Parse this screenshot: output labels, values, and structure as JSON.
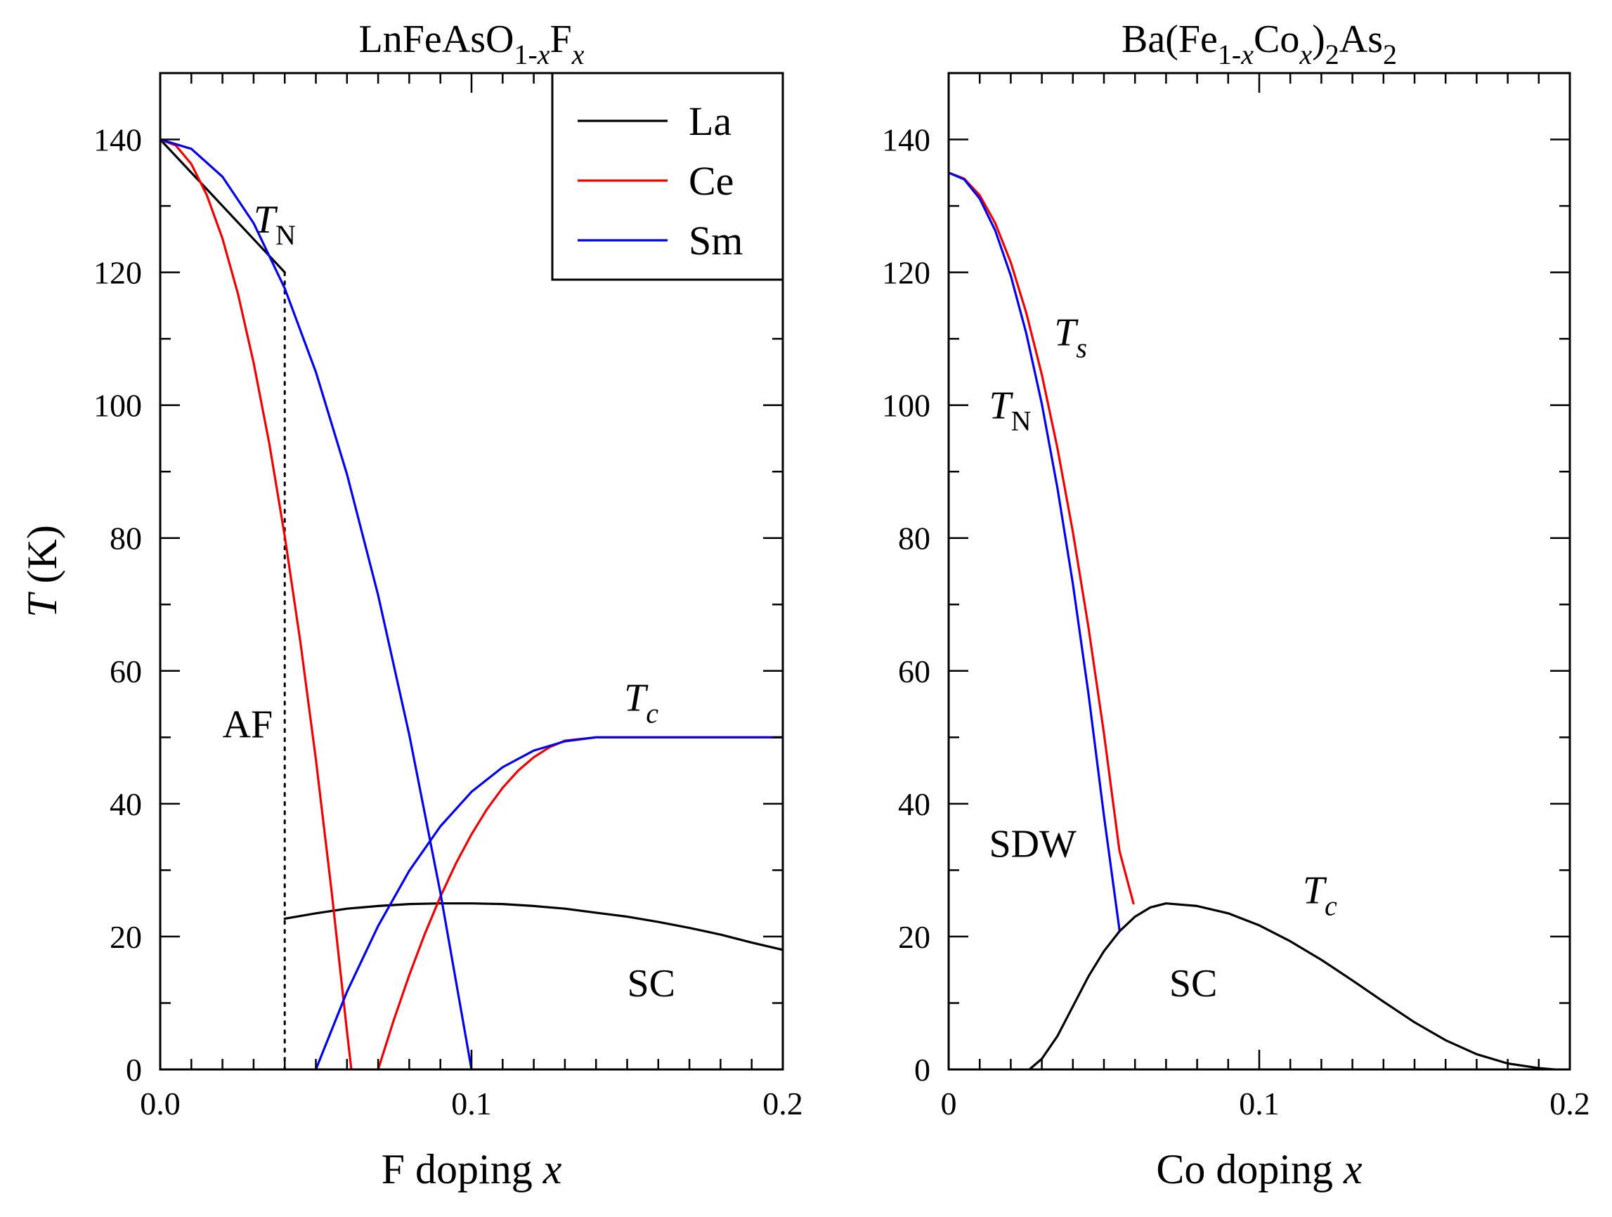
{
  "chart_data": [
    {
      "type": "line",
      "panel": "left",
      "title": "LnFeAsO1-xFx",
      "title_parts": [
        {
          "t": "LnFeAsO",
          "style": "normal"
        },
        {
          "t": "1-",
          "style": "sub"
        },
        {
          "t": "x",
          "style": "sub-italic"
        },
        {
          "t": "F",
          "style": "normal"
        },
        {
          "t": "x",
          "style": "sub-italic"
        }
      ],
      "xlabel": "F doping x",
      "xlabel_parts": [
        {
          "t": "F doping ",
          "style": "normal"
        },
        {
          "t": "x",
          "style": "italic"
        }
      ],
      "ylabel": "T (K)",
      "ylabel_parts": [
        {
          "t": "T",
          "style": "italic"
        },
        {
          "t": " (K)",
          "style": "normal"
        }
      ],
      "xlim": [
        0,
        0.2
      ],
      "ylim": [
        0,
        150
      ],
      "xticks": [
        0,
        0.1,
        0.2
      ],
      "xtick_labels": [
        "0.0",
        "0.1",
        "0.2"
      ],
      "xminor": [
        0.01,
        0.02,
        0.03,
        0.04,
        0.05,
        0.06,
        0.07,
        0.08,
        0.09,
        0.11,
        0.12,
        0.13,
        0.14,
        0.15,
        0.16,
        0.17,
        0.18,
        0.19
      ],
      "yticks": [
        0,
        20,
        40,
        60,
        80,
        100,
        120,
        140
      ],
      "ytick_labels": [
        "0",
        "20",
        "40",
        "60",
        "80",
        "100",
        "120",
        "140"
      ],
      "yminor": [
        10,
        30,
        50,
        70,
        90,
        110,
        130
      ],
      "legend": {
        "placement": "top-right",
        "entries": [
          {
            "label": "La",
            "color": "#000000"
          },
          {
            "label": "Ce",
            "color": "#ee0000"
          },
          {
            "label": "Sm",
            "color": "#0000ee"
          }
        ]
      },
      "series": [
        {
          "name": "La T_N",
          "color": "#000000",
          "dash": false,
          "points": [
            [
              0,
              140
            ],
            [
              0.04,
              120
            ]
          ]
        },
        {
          "name": "La onset",
          "color": "#000000",
          "dash": true,
          "points": [
            [
              0.04,
              120
            ],
            [
              0.04,
              0
            ]
          ]
        },
        {
          "name": "La T_c",
          "color": "#000000",
          "dash": false,
          "points": [
            [
              0.04,
              22.7
            ],
            [
              0.05,
              23.5
            ],
            [
              0.06,
              24.2
            ],
            [
              0.07,
              24.6
            ],
            [
              0.08,
              24.9
            ],
            [
              0.09,
              25.0
            ],
            [
              0.1,
              25.0
            ],
            [
              0.11,
              24.9
            ],
            [
              0.12,
              24.6
            ],
            [
              0.13,
              24.2
            ],
            [
              0.14,
              23.6
            ],
            [
              0.15,
              23.0
            ],
            [
              0.16,
              22.2
            ],
            [
              0.17,
              21.3
            ],
            [
              0.18,
              20.3
            ],
            [
              0.19,
              19.1
            ],
            [
              0.2,
              18.0
            ]
          ]
        },
        {
          "name": "Ce T_N",
          "color": "#ee0000",
          "dash": false,
          "points": [
            [
              0,
              140
            ],
            [
              0.005,
              139.1
            ],
            [
              0.01,
              136.3
            ],
            [
              0.015,
              131.6
            ],
            [
              0.02,
              125.1
            ],
            [
              0.025,
              116.7
            ],
            [
              0.03,
              106.4
            ],
            [
              0.035,
              94.3
            ],
            [
              0.04,
              80.3
            ],
            [
              0.045,
              64.4
            ],
            [
              0.05,
              46.7
            ],
            [
              0.055,
              27.1
            ],
            [
              0.06,
              5.7
            ],
            [
              0.0614,
              0
            ]
          ]
        },
        {
          "name": "Ce T_c",
          "color": "#ee0000",
          "dash": false,
          "points": [
            [
              0.07,
              0
            ],
            [
              0.075,
              7.4
            ],
            [
              0.08,
              14.2
            ],
            [
              0.085,
              20.4
            ],
            [
              0.09,
              26.0
            ],
            [
              0.095,
              31.0
            ],
            [
              0.1,
              35.4
            ],
            [
              0.105,
              39.2
            ],
            [
              0.11,
              42.4
            ],
            [
              0.115,
              45.0
            ],
            [
              0.12,
              47.0
            ],
            [
              0.125,
              48.5
            ],
            [
              0.13,
              49.5
            ],
            [
              0.14,
              50
            ],
            [
              0.15,
              50
            ],
            [
              0.16,
              50
            ],
            [
              0.17,
              50
            ],
            [
              0.18,
              50
            ],
            [
              0.19,
              50
            ],
            [
              0.2,
              50
            ]
          ]
        },
        {
          "name": "Sm T_N",
          "color": "#0000ee",
          "dash": false,
          "points": [
            [
              0,
              140
            ],
            [
              0.01,
              138.6
            ],
            [
              0.02,
              134.4
            ],
            [
              0.03,
              127.4
            ],
            [
              0.04,
              117.6
            ],
            [
              0.05,
              105.0
            ],
            [
              0.06,
              89.6
            ],
            [
              0.07,
              71.4
            ],
            [
              0.08,
              50.4
            ],
            [
              0.09,
              26.6
            ],
            [
              0.1,
              0
            ]
          ]
        },
        {
          "name": "Sm T_c",
          "color": "#0000ee",
          "dash": false,
          "points": [
            [
              0.05,
              0
            ],
            [
              0.06,
              11.7
            ],
            [
              0.07,
              21.6
            ],
            [
              0.08,
              29.9
            ],
            [
              0.09,
              36.6
            ],
            [
              0.1,
              41.8
            ],
            [
              0.11,
              45.5
            ],
            [
              0.12,
              48.0
            ],
            [
              0.13,
              49.4
            ],
            [
              0.14,
              50
            ],
            [
              0.15,
              50
            ],
            [
              0.16,
              50
            ],
            [
              0.17,
              50
            ],
            [
              0.18,
              50
            ],
            [
              0.19,
              50
            ],
            [
              0.2,
              50
            ]
          ]
        }
      ],
      "annotations": [
        {
          "name": "tn-label",
          "x": 0.03,
          "y": 126,
          "parts": [
            {
              "t": "T",
              "style": "italic"
            },
            {
              "t": "N",
              "style": "sub"
            }
          ]
        },
        {
          "name": "tc-label",
          "x": 0.149,
          "y": 54,
          "parts": [
            {
              "t": "T",
              "style": "italic"
            },
            {
              "t": "c",
              "style": "sub-italic"
            }
          ]
        },
        {
          "name": "af-region-label",
          "x": 0.02,
          "y": 50,
          "parts": [
            {
              "t": "AF",
              "style": "normal"
            }
          ]
        },
        {
          "name": "sc-region-label",
          "x": 0.15,
          "y": 11,
          "parts": [
            {
              "t": "SC",
              "style": "normal"
            }
          ]
        }
      ]
    },
    {
      "type": "line",
      "panel": "right",
      "title": "Ba(Fe1-xCox)2As2",
      "title_parts": [
        {
          "t": "Ba(Fe",
          "style": "normal"
        },
        {
          "t": "1-",
          "style": "sub"
        },
        {
          "t": "x",
          "style": "sub-italic"
        },
        {
          "t": "Co",
          "style": "normal"
        },
        {
          "t": "x",
          "style": "sub-italic"
        },
        {
          "t": ")",
          "style": "normal"
        },
        {
          "t": "2",
          "style": "sub"
        },
        {
          "t": "As",
          "style": "normal"
        },
        {
          "t": "2",
          "style": "sub"
        }
      ],
      "xlabel": "Co doping x",
      "xlabel_parts": [
        {
          "t": "Co doping ",
          "style": "normal"
        },
        {
          "t": "x",
          "style": "italic"
        }
      ],
      "xlim": [
        0,
        0.2
      ],
      "ylim": [
        0,
        150
      ],
      "xticks": [
        0,
        0.1,
        0.2
      ],
      "xtick_labels": [
        "0",
        "0.1",
        "0.2"
      ],
      "xminor": [
        0.01,
        0.02,
        0.03,
        0.04,
        0.05,
        0.06,
        0.07,
        0.08,
        0.09,
        0.11,
        0.12,
        0.13,
        0.14,
        0.15,
        0.16,
        0.17,
        0.18,
        0.19
      ],
      "yticks": [
        0,
        20,
        40,
        60,
        80,
        100,
        120,
        140
      ],
      "ytick_labels": [
        "0",
        "20",
        "40",
        "60",
        "80",
        "100",
        "120",
        "140"
      ],
      "yminor": [
        10,
        30,
        50,
        70,
        90,
        110,
        130
      ],
      "series": [
        {
          "name": "T_s",
          "color": "#ee0000",
          "dash": false,
          "points": [
            [
              0,
              135
            ],
            [
              0.005,
              134.1
            ],
            [
              0.01,
              131.6
            ],
            [
              0.015,
              127.4
            ],
            [
              0.02,
              121.5
            ],
            [
              0.025,
              113.9
            ],
            [
              0.03,
              104.6
            ],
            [
              0.035,
              93.6
            ],
            [
              0.04,
              80.9
            ],
            [
              0.045,
              66.6
            ],
            [
              0.05,
              50.6
            ],
            [
              0.055,
              32.9
            ],
            [
              0.0595,
              25.0
            ]
          ]
        },
        {
          "name": "T_N",
          "color": "#0000ee",
          "dash": false,
          "points": [
            [
              0,
              135
            ],
            [
              0.005,
              134.0
            ],
            [
              0.01,
              131.1
            ],
            [
              0.015,
              126.3
            ],
            [
              0.02,
              119.5
            ],
            [
              0.025,
              110.8
            ],
            [
              0.03,
              100.2
            ],
            [
              0.035,
              87.6
            ],
            [
              0.04,
              73.1
            ],
            [
              0.045,
              56.6
            ],
            [
              0.05,
              38.2
            ],
            [
              0.055,
              21.0
            ]
          ]
        },
        {
          "name": "T_c",
          "color": "#000000",
          "dash": false,
          "points": [
            [
              0.026,
              0
            ],
            [
              0.03,
              1.6
            ],
            [
              0.035,
              5.0
            ],
            [
              0.04,
              9.5
            ],
            [
              0.045,
              14.0
            ],
            [
              0.05,
              17.8
            ],
            [
              0.055,
              20.8
            ],
            [
              0.06,
              23.0
            ],
            [
              0.065,
              24.4
            ],
            [
              0.07,
              25.0
            ],
            [
              0.08,
              24.6
            ],
            [
              0.09,
              23.5
            ],
            [
              0.1,
              21.7
            ],
            [
              0.11,
              19.3
            ],
            [
              0.12,
              16.5
            ],
            [
              0.13,
              13.4
            ],
            [
              0.14,
              10.2
            ],
            [
              0.15,
              7.1
            ],
            [
              0.16,
              4.4
            ],
            [
              0.17,
              2.3
            ],
            [
              0.18,
              0.9
            ],
            [
              0.19,
              0.2
            ],
            [
              0.195,
              0
            ]
          ]
        }
      ],
      "annotations": [
        {
          "name": "ts-label",
          "x": 0.034,
          "y": 109,
          "parts": [
            {
              "t": "T",
              "style": "italic"
            },
            {
              "t": "s",
              "style": "sub-italic"
            }
          ]
        },
        {
          "name": "tn-label",
          "x": 0.013,
          "y": 98,
          "parts": [
            {
              "t": "T",
              "style": "italic"
            },
            {
              "t": "N",
              "style": "sub"
            }
          ]
        },
        {
          "name": "tc-label",
          "x": 0.114,
          "y": 25,
          "parts": [
            {
              "t": "T",
              "style": "italic"
            },
            {
              "t": "c",
              "style": "sub-italic"
            }
          ]
        },
        {
          "name": "sdw-region-label",
          "x": 0.013,
          "y": 32,
          "parts": [
            {
              "t": "SDW",
              "style": "normal"
            }
          ]
        },
        {
          "name": "sc-region-label",
          "x": 0.071,
          "y": 11,
          "parts": [
            {
              "t": "SC",
              "style": "normal"
            }
          ]
        }
      ]
    }
  ]
}
